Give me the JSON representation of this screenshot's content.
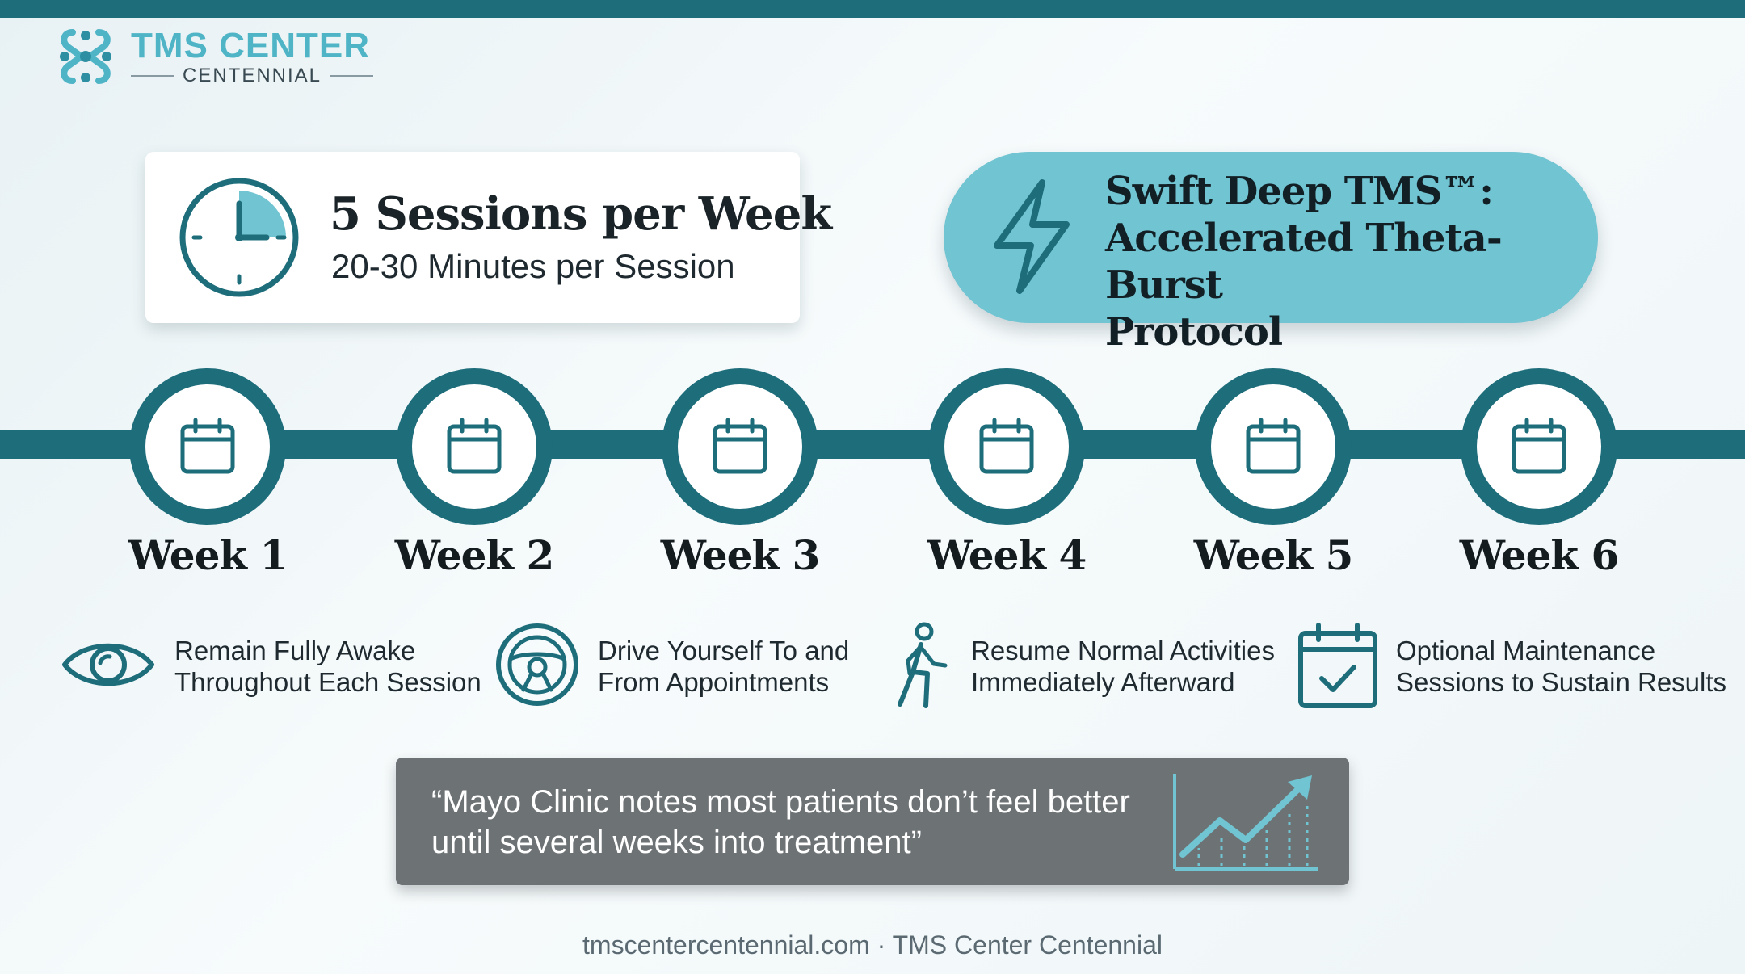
{
  "brand": {
    "name": "TMS CENTER",
    "location": "CENTENNIAL"
  },
  "sessions_card": {
    "title": "5 Sessions per Week",
    "subtitle": "20-30 Minutes per Session"
  },
  "protocol": {
    "lines": [
      "Swift Deep TMS™:",
      "Accelerated Theta-Burst",
      "Protocol"
    ]
  },
  "timeline": {
    "weeks": [
      "Week 1",
      "Week 2",
      "Week 3",
      "Week 4",
      "Week 5",
      "Week 6"
    ]
  },
  "features": [
    {
      "icon": "eye-icon",
      "lines": [
        "Remain Fully Awake",
        "Throughout Each Session"
      ]
    },
    {
      "icon": "steering-wheel-icon",
      "lines": [
        "Drive Yourself To and",
        "From Appointments"
      ]
    },
    {
      "icon": "walking-person-icon",
      "lines": [
        "Resume Normal Activities",
        "Immediately Afterward"
      ]
    },
    {
      "icon": "calendar-check-icon",
      "lines": [
        "Optional Maintenance",
        "Sessions to Sustain Results"
      ]
    }
  ],
  "quote": {
    "lines": [
      "“Mayo Clinic notes most patients don’t feel better",
      "until several weeks into treatment”"
    ]
  },
  "footer": "tmscentercentennial.com · TMS Center Centennial",
  "colors": {
    "primary": "#1e6d7b",
    "accent": "#71c4d2",
    "logo": "#4fb4c6",
    "quote_bg": "#6d7275"
  }
}
